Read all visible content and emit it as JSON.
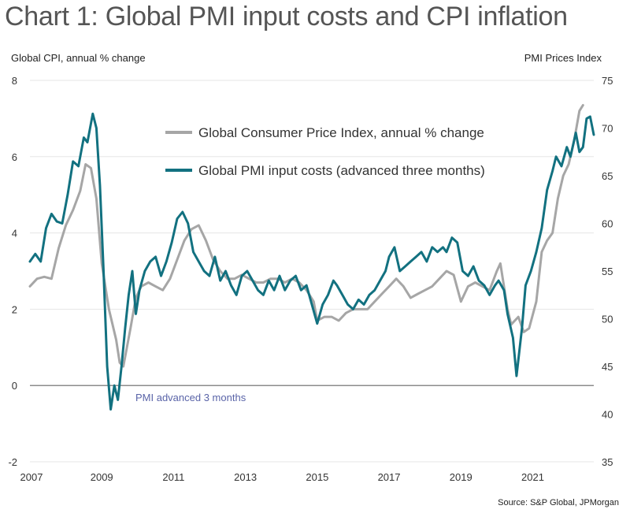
{
  "chart_data": {
    "type": "line",
    "title": "Chart 1: Global PMI input costs and CPI inflation",
    "ylabel_left": "Global CPI, annual % change",
    "ylabel_right": "PMI Prices Index",
    "source": "Source: S&P Global, JPMorgan",
    "annotation": "PMI advanced 3 months",
    "ylim_left": [
      -2,
      8
    ],
    "ylim_right": [
      35,
      75
    ],
    "y_left_ticks": [
      "8",
      "6",
      "4",
      "2",
      "0",
      "-2"
    ],
    "y_right_ticks": [
      "75",
      "70",
      "65",
      "60",
      "55",
      "50",
      "45",
      "40",
      "35"
    ],
    "x_ticks": [
      "2007",
      "2009",
      "2011",
      "2013",
      "2015",
      "2017",
      "2019",
      "2021"
    ],
    "xlim": [
      2007.0,
      2022.7
    ],
    "legend_placement": "top-center",
    "colors": {
      "cpi": "#a6a6a6",
      "pmi": "#127180",
      "zero_line": "#666666",
      "gridline": "#e6e6e6"
    },
    "series": [
      {
        "name": "Global Consumer Price Index, annual % change",
        "axis": "left",
        "points": [
          [
            2007.0,
            2.6
          ],
          [
            2007.2,
            2.8
          ],
          [
            2007.4,
            2.85
          ],
          [
            2007.6,
            2.8
          ],
          [
            2007.8,
            3.6
          ],
          [
            2008.0,
            4.2
          ],
          [
            2008.2,
            4.6
          ],
          [
            2008.4,
            5.1
          ],
          [
            2008.55,
            5.8
          ],
          [
            2008.7,
            5.7
          ],
          [
            2008.85,
            4.9
          ],
          [
            2009.0,
            3.2
          ],
          [
            2009.2,
            2.0
          ],
          [
            2009.4,
            1.2
          ],
          [
            2009.5,
            0.6
          ],
          [
            2009.6,
            0.5
          ],
          [
            2009.8,
            1.5
          ],
          [
            2009.95,
            2.3
          ],
          [
            2010.1,
            2.6
          ],
          [
            2010.3,
            2.7
          ],
          [
            2010.5,
            2.6
          ],
          [
            2010.7,
            2.5
          ],
          [
            2010.9,
            2.8
          ],
          [
            2011.1,
            3.3
          ],
          [
            2011.3,
            3.8
          ],
          [
            2011.5,
            4.1
          ],
          [
            2011.7,
            4.2
          ],
          [
            2011.9,
            3.8
          ],
          [
            2012.1,
            3.3
          ],
          [
            2012.3,
            3.0
          ],
          [
            2012.5,
            2.8
          ],
          [
            2012.7,
            2.8
          ],
          [
            2012.9,
            2.9
          ],
          [
            2013.1,
            2.8
          ],
          [
            2013.3,
            2.7
          ],
          [
            2013.5,
            2.7
          ],
          [
            2013.7,
            2.8
          ],
          [
            2013.9,
            2.8
          ],
          [
            2014.1,
            2.7
          ],
          [
            2014.3,
            2.8
          ],
          [
            2014.5,
            2.7
          ],
          [
            2014.7,
            2.5
          ],
          [
            2014.9,
            2.2
          ],
          [
            2015.0,
            1.7
          ],
          [
            2015.2,
            1.8
          ],
          [
            2015.4,
            1.8
          ],
          [
            2015.6,
            1.7
          ],
          [
            2015.8,
            1.9
          ],
          [
            2016.0,
            2.0
          ],
          [
            2016.2,
            2.0
          ],
          [
            2016.4,
            2.0
          ],
          [
            2016.6,
            2.2
          ],
          [
            2016.8,
            2.4
          ],
          [
            2017.0,
            2.6
          ],
          [
            2017.2,
            2.8
          ],
          [
            2017.4,
            2.6
          ],
          [
            2017.6,
            2.3
          ],
          [
            2017.8,
            2.4
          ],
          [
            2018.0,
            2.5
          ],
          [
            2018.2,
            2.6
          ],
          [
            2018.4,
            2.8
          ],
          [
            2018.6,
            3.0
          ],
          [
            2018.8,
            2.9
          ],
          [
            2019.0,
            2.2
          ],
          [
            2019.2,
            2.6
          ],
          [
            2019.4,
            2.7
          ],
          [
            2019.6,
            2.6
          ],
          [
            2019.8,
            2.5
          ],
          [
            2020.0,
            3.0
          ],
          [
            2020.1,
            3.2
          ],
          [
            2020.3,
            2.0
          ],
          [
            2020.4,
            1.6
          ],
          [
            2020.6,
            1.8
          ],
          [
            2020.75,
            1.4
          ],
          [
            2020.9,
            1.5
          ],
          [
            2021.1,
            2.2
          ],
          [
            2021.25,
            3.5
          ],
          [
            2021.4,
            3.8
          ],
          [
            2021.55,
            4.0
          ],
          [
            2021.7,
            4.9
          ],
          [
            2021.85,
            5.5
          ],
          [
            2022.0,
            5.8
          ],
          [
            2022.15,
            6.4
          ],
          [
            2022.3,
            7.2
          ],
          [
            2022.4,
            7.35
          ]
        ]
      },
      {
        "name": "Global PMI input costs (advanced three months)",
        "axis": "right",
        "points": [
          [
            2007.0,
            56.0
          ],
          [
            2007.15,
            56.8
          ],
          [
            2007.3,
            56.0
          ],
          [
            2007.45,
            59.5
          ],
          [
            2007.6,
            61.0
          ],
          [
            2007.75,
            60.2
          ],
          [
            2007.9,
            60.0
          ],
          [
            2008.05,
            63.0
          ],
          [
            2008.2,
            66.5
          ],
          [
            2008.35,
            66.0
          ],
          [
            2008.5,
            69.0
          ],
          [
            2008.6,
            68.5
          ],
          [
            2008.75,
            71.5
          ],
          [
            2008.85,
            70.0
          ],
          [
            2008.95,
            64.0
          ],
          [
            2009.05,
            55.0
          ],
          [
            2009.15,
            45.0
          ],
          [
            2009.25,
            40.5
          ],
          [
            2009.35,
            43.0
          ],
          [
            2009.45,
            41.5
          ],
          [
            2009.55,
            45.0
          ],
          [
            2009.65,
            49.0
          ],
          [
            2009.75,
            52.5
          ],
          [
            2009.85,
            55.0
          ],
          [
            2009.95,
            50.5
          ],
          [
            2010.05,
            53.0
          ],
          [
            2010.2,
            55.0
          ],
          [
            2010.35,
            56.0
          ],
          [
            2010.5,
            56.5
          ],
          [
            2010.65,
            54.5
          ],
          [
            2010.8,
            56.0
          ],
          [
            2010.95,
            58.0
          ],
          [
            2011.1,
            60.5
          ],
          [
            2011.25,
            61.2
          ],
          [
            2011.4,
            60.0
          ],
          [
            2011.55,
            57.0
          ],
          [
            2011.7,
            56.0
          ],
          [
            2011.85,
            55.0
          ],
          [
            2012.0,
            54.5
          ],
          [
            2012.15,
            56.5
          ],
          [
            2012.3,
            54.0
          ],
          [
            2012.45,
            55.0
          ],
          [
            2012.6,
            53.5
          ],
          [
            2012.75,
            52.5
          ],
          [
            2012.9,
            54.5
          ],
          [
            2013.05,
            55.0
          ],
          [
            2013.2,
            54.0
          ],
          [
            2013.35,
            53.0
          ],
          [
            2013.5,
            52.5
          ],
          [
            2013.65,
            54.0
          ],
          [
            2013.8,
            53.0
          ],
          [
            2013.95,
            54.5
          ],
          [
            2014.1,
            53.0
          ],
          [
            2014.25,
            54.0
          ],
          [
            2014.4,
            54.5
          ],
          [
            2014.55,
            53.0
          ],
          [
            2014.7,
            53.5
          ],
          [
            2014.85,
            51.5
          ],
          [
            2015.0,
            49.5
          ],
          [
            2015.15,
            51.5
          ],
          [
            2015.3,
            52.5
          ],
          [
            2015.45,
            54.0
          ],
          [
            2015.55,
            53.5
          ],
          [
            2015.7,
            52.5
          ],
          [
            2015.85,
            51.5
          ],
          [
            2016.0,
            51.0
          ],
          [
            2016.15,
            52.0
          ],
          [
            2016.3,
            51.5
          ],
          [
            2016.45,
            52.5
          ],
          [
            2016.6,
            53.0
          ],
          [
            2016.75,
            54.0
          ],
          [
            2016.9,
            55.0
          ],
          [
            2017.0,
            56.5
          ],
          [
            2017.15,
            57.5
          ],
          [
            2017.3,
            55.0
          ],
          [
            2017.45,
            55.5
          ],
          [
            2017.6,
            56.0
          ],
          [
            2017.75,
            56.5
          ],
          [
            2017.9,
            57.0
          ],
          [
            2018.05,
            56.0
          ],
          [
            2018.2,
            57.5
          ],
          [
            2018.35,
            57.0
          ],
          [
            2018.5,
            57.5
          ],
          [
            2018.6,
            57.0
          ],
          [
            2018.75,
            58.5
          ],
          [
            2018.9,
            58.0
          ],
          [
            2019.05,
            55.0
          ],
          [
            2019.2,
            54.5
          ],
          [
            2019.35,
            55.5
          ],
          [
            2019.5,
            54.0
          ],
          [
            2019.65,
            53.5
          ],
          [
            2019.8,
            52.5
          ],
          [
            2019.95,
            53.5
          ],
          [
            2020.05,
            54.0
          ],
          [
            2020.2,
            53.0
          ],
          [
            2020.3,
            50.5
          ],
          [
            2020.45,
            48.0
          ],
          [
            2020.55,
            44.0
          ],
          [
            2020.7,
            49.0
          ],
          [
            2020.8,
            53.5
          ],
          [
            2020.95,
            55.0
          ],
          [
            2021.1,
            57.0
          ],
          [
            2021.25,
            59.5
          ],
          [
            2021.4,
            63.5
          ],
          [
            2021.55,
            65.5
          ],
          [
            2021.65,
            67.0
          ],
          [
            2021.8,
            66.0
          ],
          [
            2021.95,
            68.0
          ],
          [
            2022.05,
            67.0
          ],
          [
            2022.2,
            69.5
          ],
          [
            2022.3,
            67.5
          ],
          [
            2022.4,
            68.0
          ],
          [
            2022.5,
            71.0
          ],
          [
            2022.6,
            71.2
          ],
          [
            2022.7,
            69.3
          ]
        ]
      }
    ]
  }
}
